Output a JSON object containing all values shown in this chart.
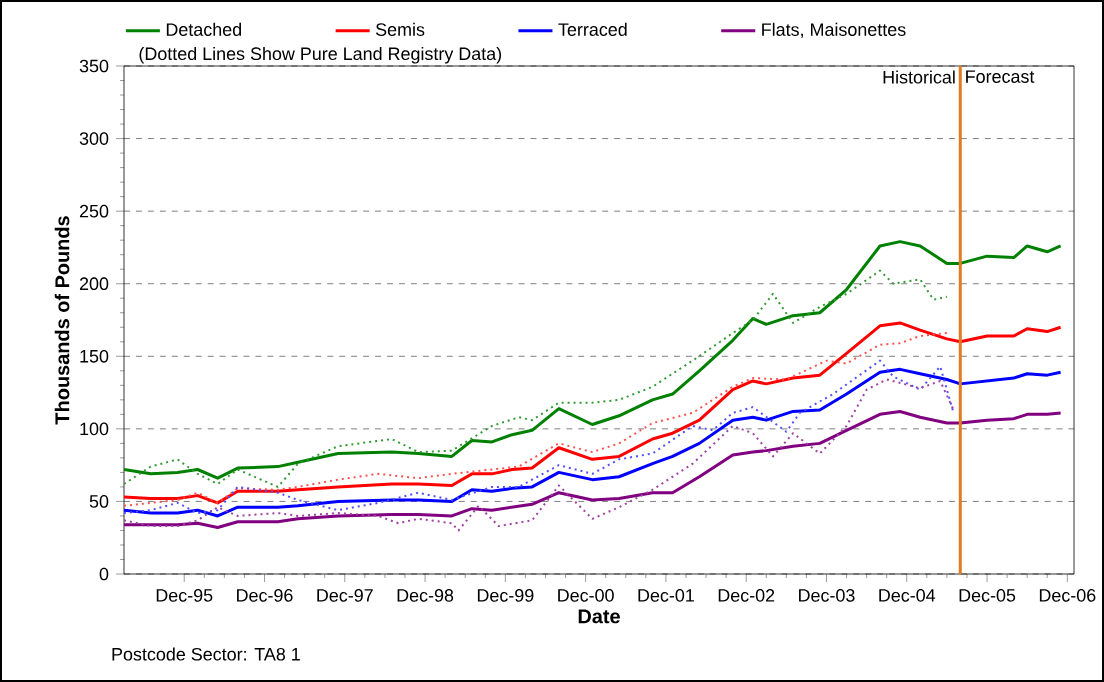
{
  "chart_data": {
    "type": "line",
    "subtitle": "(Dotted Lines Show Pure Land Registry Data)",
    "xlabel": "Date",
    "ylabel": "Thousands of Pounds",
    "x": [
      "1995-03",
      "1995-07",
      "1995-11",
      "1996-02",
      "1996-05",
      "1996-08",
      "1997-02",
      "1997-05",
      "1997-11",
      "1998-07",
      "1998-11",
      "1999-04",
      "1999-07",
      "1999-10",
      "2000-01",
      "2000-04",
      "2000-08",
      "2001-01",
      "2001-05",
      "2001-10",
      "2002-01",
      "2002-05",
      "2002-10",
      "2003-01",
      "2003-03",
      "2003-07",
      "2003-11",
      "2004-03",
      "2004-08",
      "2004-11",
      "2005-02",
      "2005-06",
      "2005-08",
      "2005-12",
      "2006-04",
      "2006-06",
      "2006-09",
      "2006-11"
    ],
    "series": [
      {
        "name": "Detached",
        "color": "#008000",
        "line_style": "solid",
        "values": [
          72,
          69,
          70,
          72,
          66,
          73,
          74,
          77,
          83,
          84,
          83,
          81,
          92,
          91,
          96,
          99,
          114,
          103,
          109,
          120,
          124,
          140,
          161,
          176,
          172,
          178,
          180,
          196,
          226,
          229,
          226,
          214,
          214,
          219,
          218,
          226,
          222,
          226
        ]
      },
      {
        "name": "Semis",
        "color": "#ff0000",
        "line_style": "solid",
        "values": [
          53,
          52,
          52,
          54,
          49,
          57,
          57,
          58,
          60,
          62,
          62,
          61,
          69,
          69,
          72,
          73,
          87,
          79,
          81,
          93,
          97,
          106,
          127,
          133,
          131,
          135,
          137,
          152,
          171,
          173,
          168,
          162,
          160,
          164,
          164,
          169,
          167,
          170
        ]
      },
      {
        "name": "Terraced",
        "color": "#0000ff",
        "line_style": "solid",
        "values": [
          44,
          42,
          42,
          44,
          40,
          46,
          46,
          47,
          50,
          51,
          51,
          50,
          58,
          57,
          59,
          60,
          70,
          65,
          67,
          76,
          81,
          90,
          106,
          108,
          106,
          112,
          113,
          124,
          139,
          141,
          138,
          134,
          131,
          133,
          135,
          138,
          137,
          139
        ]
      },
      {
        "name": "Flats, Maisonettes",
        "color": "#800080",
        "line_style": "solid",
        "values": [
          34,
          34,
          34,
          35,
          32,
          36,
          36,
          38,
          40,
          41,
          41,
          40,
          45,
          44,
          46,
          48,
          56,
          51,
          52,
          56,
          56,
          67,
          82,
          84,
          85,
          88,
          90,
          99,
          110,
          112,
          108,
          104,
          104,
          106,
          107,
          110,
          110,
          111
        ]
      },
      {
        "color": "#339933",
        "line_style": "dotted",
        "x": [
          "1995-03",
          "1995-07",
          "1995-11",
          "1996-02",
          "1996-05",
          "1996-08",
          "1997-02",
          "1997-05",
          "1997-11",
          "1998-07",
          "1998-11",
          "1999-04",
          "1999-10",
          "2000-02",
          "2000-04",
          "2000-08",
          "2001-01",
          "2001-05",
          "2001-10",
          "2002-04",
          "2002-10",
          "2003-01",
          "2003-04",
          "2003-07",
          "2003-11",
          "2004-03",
          "2004-08",
          "2004-10",
          "2005-02",
          "2005-04",
          "2005-06"
        ],
        "values": [
          62,
          74,
          79,
          69,
          62,
          72,
          60,
          76,
          88,
          93,
          84,
          85,
          102,
          108,
          106,
          118,
          118,
          120,
          129,
          147,
          166,
          175,
          193,
          173,
          184,
          193,
          209,
          200,
          203,
          189,
          191
        ]
      },
      {
        "color": "#ff5050",
        "line_style": "dotted",
        "x": [
          "1995-03",
          "1995-07",
          "1995-11",
          "1996-02",
          "1996-05",
          "1996-08",
          "1997-02",
          "1997-05",
          "1997-11",
          "1998-05",
          "1998-11",
          "1999-04",
          "1999-10",
          "2000-02",
          "2000-08",
          "2001-01",
          "2001-05",
          "2001-10",
          "2002-04",
          "2002-10",
          "2003-01",
          "2003-06",
          "2003-12",
          "2004-03",
          "2004-08",
          "2004-11",
          "2005-02",
          "2005-06"
        ],
        "values": [
          47,
          49,
          51,
          56,
          49,
          59,
          58,
          60,
          65,
          69,
          66,
          69,
          72,
          74,
          90,
          84,
          90,
          104,
          111,
          129,
          135,
          134,
          147,
          145,
          158,
          159,
          164,
          166
        ]
      },
      {
        "color": "#5050ff",
        "line_style": "dotted",
        "x": [
          "1995-03",
          "1995-07",
          "1995-11",
          "1996-02",
          "1996-05",
          "1996-08",
          "1997-02",
          "1997-05",
          "1997-11",
          "1998-05",
          "1998-11",
          "1999-04",
          "1999-10",
          "2000-02",
          "2000-08",
          "2001-01",
          "2001-05",
          "2001-10",
          "2002-04",
          "2002-07",
          "2002-10",
          "2003-01",
          "2003-06",
          "2003-08",
          "2004-01",
          "2004-08",
          "2004-10",
          "2005-02",
          "2005-05",
          "2005-07"
        ],
        "values": [
          42,
          44,
          49,
          42,
          44,
          60,
          56,
          51,
          44,
          49,
          56,
          51,
          60,
          60,
          75,
          69,
          79,
          83,
          102,
          99,
          111,
          115,
          98,
          111,
          124,
          147,
          136,
          127,
          143,
          111
        ]
      },
      {
        "color": "#a040a0",
        "line_style": "dotted",
        "x": [
          "1995-03",
          "1995-07",
          "1995-11",
          "1996-02",
          "1996-05",
          "1996-08",
          "1997-02",
          "1997-05",
          "1997-11",
          "1998-05",
          "1998-08",
          "1998-11",
          "1999-04",
          "1999-05",
          "1999-08",
          "1999-11",
          "2000-04",
          "2000-08",
          "2001-01",
          "2001-05",
          "2001-10",
          "2002-04",
          "2002-10",
          "2003-01",
          "2003-04",
          "2003-07",
          "2003-11",
          "2004-03",
          "2004-06",
          "2004-09",
          "2005-02",
          "2005-05",
          "2005-07"
        ],
        "values": [
          37,
          33,
          33,
          37,
          46,
          40,
          42,
          40,
          42,
          40,
          35,
          38,
          35,
          30,
          47,
          33,
          37,
          61,
          38,
          46,
          58,
          76,
          102,
          97,
          81,
          97,
          83,
          102,
          127,
          134,
          128,
          133,
          113
        ]
      }
    ],
    "xlim": [
      "1995-03",
      "2007-01"
    ],
    "xticks": [
      {
        "value": "1995-12",
        "label": "Dec-95"
      },
      {
        "value": "1996-12",
        "label": "Dec-96"
      },
      {
        "value": "1997-12",
        "label": "Dec-97"
      },
      {
        "value": "1998-12",
        "label": "Dec-98"
      },
      {
        "value": "1999-12",
        "label": "Dec-99"
      },
      {
        "value": "2000-12",
        "label": "Dec-00"
      },
      {
        "value": "2001-12",
        "label": "Dec-01"
      },
      {
        "value": "2002-12",
        "label": "Dec-02"
      },
      {
        "value": "2003-12",
        "label": "Dec-03"
      },
      {
        "value": "2004-12",
        "label": "Dec-04"
      },
      {
        "value": "2005-12",
        "label": "Dec-05"
      },
      {
        "value": "2006-12",
        "label": "Dec-06"
      }
    ],
    "ylim": [
      0,
      350
    ],
    "yticks": [
      0,
      50,
      100,
      150,
      200,
      250,
      300,
      350
    ],
    "grid": "y",
    "legend": "top",
    "ref_lines": [
      {
        "axis": "x",
        "value": "2005-08",
        "color": "#e07b20",
        "label": "Historical"
      }
    ],
    "annotations": [
      "Forecast",
      "Postcode Sector: TA8 1"
    ]
  }
}
